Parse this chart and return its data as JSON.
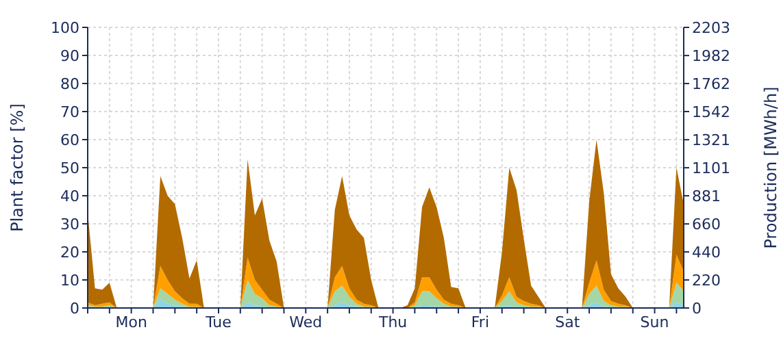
{
  "chart_data": {
    "type": "area",
    "stacked": true,
    "ylabel": "Plant factor [%]",
    "y2label": "Production [MWh/h]",
    "categories": [
      null,
      null,
      null,
      null,
      null,
      null,
      "Mon",
      null,
      null,
      null,
      null,
      null,
      null,
      null,
      null,
      null,
      null,
      null,
      "Tue",
      null,
      null,
      null,
      null,
      null,
      null,
      null,
      null,
      null,
      null,
      null,
      "Wed",
      null,
      null,
      null,
      null,
      null,
      null,
      null,
      null,
      null,
      null,
      null,
      "Thu",
      null,
      null,
      null,
      null,
      null,
      null,
      null,
      null,
      null,
      null,
      null,
      "Fri",
      null,
      null,
      null,
      null,
      null,
      null,
      null,
      null,
      null,
      null,
      null,
      "Sat",
      null,
      null,
      null,
      null,
      null,
      null,
      null,
      null,
      null,
      null,
      null,
      "Sun",
      null,
      null,
      null,
      null
    ],
    "series": [
      {
        "color": "#8fd3e8",
        "values": [
          0,
          0,
          0,
          0,
          0,
          0,
          0,
          0,
          0,
          0,
          3,
          1.5,
          1,
          0.5,
          0,
          0,
          0,
          0,
          0,
          0,
          0,
          0,
          2,
          1,
          0.5,
          0,
          0,
          0,
          0,
          0,
          0,
          0,
          0,
          0,
          1,
          2,
          1,
          0.5,
          0,
          0,
          0,
          0,
          0,
          0,
          0,
          0,
          1,
          1,
          0.5,
          0,
          0,
          0,
          0,
          0,
          0,
          0,
          0,
          0.5,
          1,
          0,
          0,
          0,
          0,
          0,
          0,
          0,
          0,
          0,
          0,
          1,
          2,
          0.5,
          0,
          0,
          0,
          0,
          0,
          0,
          0,
          0,
          0,
          2,
          1
        ]
      },
      {
        "color": "#a5d6a7",
        "values": [
          1,
          0.5,
          0.5,
          1,
          0,
          0,
          0,
          0,
          0,
          0,
          4,
          3.5,
          2,
          1,
          0.5,
          0.5,
          0,
          0,
          0,
          0,
          0,
          0,
          8,
          4,
          3,
          1,
          0.5,
          0,
          0,
          0,
          0,
          0,
          0,
          0,
          5,
          6,
          3,
          1,
          0.5,
          0.5,
          0,
          0,
          0,
          0,
          0,
          1,
          5,
          5,
          3,
          1.5,
          0.5,
          0.5,
          0,
          0,
          0,
          0,
          0,
          2,
          5,
          2,
          1,
          0.5,
          0.5,
          0,
          0,
          0,
          0,
          0,
          0,
          4,
          6,
          2,
          1,
          0.5,
          0.5,
          0,
          0,
          0,
          0,
          0,
          0,
          7,
          5
        ]
      },
      {
        "color": "#ffa000",
        "values": [
          1,
          0.5,
          1,
          1,
          0,
          0,
          0,
          0,
          0,
          0,
          8,
          5,
          3,
          2,
          1,
          1,
          0,
          0,
          0,
          0,
          0,
          0,
          8,
          5,
          3,
          2,
          1,
          0,
          0,
          0,
          0,
          0,
          0,
          0,
          5,
          7,
          3,
          1.5,
          1,
          0.5,
          0,
          0,
          0,
          0,
          0,
          1,
          5,
          5,
          3,
          1.5,
          1,
          0.5,
          0,
          0,
          0,
          0,
          0,
          2,
          5,
          2,
          1.5,
          1,
          0.5,
          0,
          0,
          0,
          0,
          0,
          0,
          4,
          9,
          4,
          1.5,
          1,
          0.5,
          0,
          0,
          0,
          0,
          0,
          0,
          10,
          7
        ]
      },
      {
        "color": "#b36b00",
        "values": [
          32,
          6,
          5,
          7,
          0,
          0,
          0,
          0,
          0,
          0,
          32,
          30,
          31,
          21.5,
          9,
          15.5,
          0,
          0,
          0,
          0,
          0,
          0,
          35,
          23,
          32.5,
          21,
          15,
          0,
          0,
          0,
          0,
          0,
          0,
          0,
          24,
          32,
          26,
          25,
          23.5,
          9,
          0,
          0,
          0,
          0,
          1,
          5,
          25,
          32,
          29.5,
          22,
          6,
          6,
          0,
          0,
          0,
          0,
          0,
          15.5,
          39,
          38,
          22,
          6.5,
          3,
          0,
          0,
          0,
          0,
          0,
          0,
          29,
          43,
          34.5,
          9.5,
          5.5,
          3,
          0,
          0,
          0,
          0,
          0,
          0,
          31,
          24
        ]
      }
    ],
    "ylim": [
      0,
      100
    ],
    "yticks": [
      0,
      10,
      20,
      30,
      40,
      50,
      60,
      70,
      80,
      90,
      100
    ],
    "y2lim": [
      0,
      2203
    ],
    "y2ticks": [
      0,
      220,
      440,
      660,
      881,
      1101,
      1321,
      1542,
      1762,
      1982,
      2203
    ],
    "grid": true
  }
}
